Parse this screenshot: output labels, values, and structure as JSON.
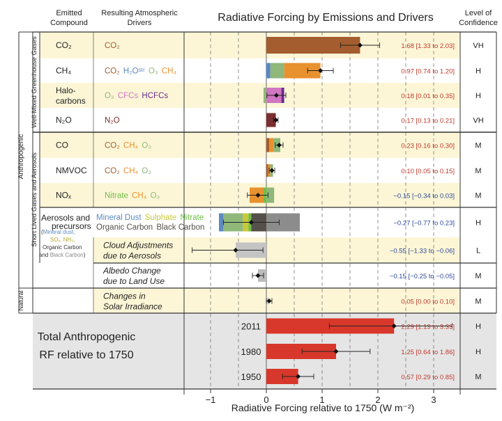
{
  "headers": {
    "compound": [
      "Emitted",
      "Compound"
    ],
    "drivers": [
      "Resulting Atmospheric",
      "Drivers"
    ],
    "title": "Radiative Forcing by Emissions and Drivers",
    "confidence": [
      "Level of",
      "Confidence"
    ]
  },
  "group_labels": {
    "anthropogenic": "Anthropogenic",
    "wmghg": "Well-Mixed Greenhouse Gases",
    "slcf": "Short Lived Gases and Aerosols",
    "natural": "Natural"
  },
  "colors": {
    "CO2": "#a35d2e",
    "CH4": "#e8912f",
    "H2Ostr": "#5a86c5",
    "O3": "#8fb87a",
    "CFCs": "#d176c1",
    "HCFCs": "#6b2b8f",
    "N2O": "#7b2e2e",
    "Nitrate": "#6fc046",
    "MineralDust": "#5d8bc0",
    "Sulphate": "#c9c83a",
    "OrganicCarbon": "#55514a",
    "BlackCarbon": "#8c8c8c",
    "Cloud": "#c4c4c4",
    "Albedo": "#bcbcbc",
    "Solar": "#d2d2d2",
    "Total": "#d7382b",
    "yellow_band": "#fcf6d6",
    "gray_band": "#e5e5e5",
    "value_red": "#c0392b",
    "value_blue": "#2c4a9a"
  },
  "rows": [
    {
      "compound": "CO₂",
      "drivers": [
        {
          "t": "CO₂",
          "c": "CO2"
        }
      ],
      "value_text": "1.68 [1.33 to 2.03]",
      "confidence": "VH",
      "band": "yellow"
    },
    {
      "compound": "CH₄",
      "drivers": [
        {
          "t": "CO₂",
          "c": "CO2"
        },
        {
          "t": "H₂Oˢᵗʳ",
          "c": "H2Ostr"
        },
        {
          "t": "O₃",
          "c": "O3"
        },
        {
          "t": "CH₄",
          "c": "CH4"
        }
      ],
      "value_text": "0.97 [0.74 to 1.20]",
      "confidence": "H",
      "band": "white"
    },
    {
      "compound": "Halo-",
      "compound2": "carbons",
      "drivers": [
        {
          "t": "O₃",
          "c": "O3"
        },
        {
          "t": "CFCs",
          "c": "CFCs"
        },
        {
          "t": "HCFCs",
          "c": "HCFCs"
        }
      ],
      "value_text": "0.18 [0.01 to 0.35]",
      "confidence": "H",
      "band": "yellow"
    },
    {
      "compound": "N₂O",
      "drivers": [
        {
          "t": "N₂O",
          "c": "N2O"
        }
      ],
      "value_text": "0.17 [0.13 to 0.21]",
      "confidence": "VH",
      "band": "white"
    },
    {
      "compound": "CO",
      "drivers": [
        {
          "t": "CO₂",
          "c": "CO2"
        },
        {
          "t": "CH₄",
          "c": "CH4"
        },
        {
          "t": "O₃",
          "c": "O3"
        }
      ],
      "value_text": "0.23 [0.16 to 0.30]",
      "confidence": "M",
      "band": "yellow"
    },
    {
      "compound": "NMVOC",
      "drivers": [
        {
          "t": "CO₂",
          "c": "CO2"
        },
        {
          "t": "CH₄",
          "c": "CH4"
        },
        {
          "t": "O₃",
          "c": "O3"
        }
      ],
      "value_text": "0.10 [0.05 to 0.15]",
      "confidence": "M",
      "band": "white"
    },
    {
      "compound": "NOₓ",
      "drivers": [
        {
          "t": "Nitrate",
          "c": "Nitrate"
        },
        {
          "t": "CH₄",
          "c": "CH4"
        },
        {
          "t": "O₃",
          "c": "O3"
        }
      ],
      "value_text": "−0.15 [−0.34 to 0.03]",
      "confidence": "M",
      "band": "yellow"
    },
    {
      "compound": "Aerosols and",
      "compound2": "precursors",
      "drivers": [
        {
          "t": "Mineral Dust",
          "c": "MineralDust"
        },
        {
          "t": "Sulphate",
          "c": "Sulphate"
        },
        {
          "t": "Nitrate",
          "c": "Nitrate"
        }
      ],
      "drivers2": [
        {
          "t": "Organic Carbon",
          "c": "OrganicCarbon"
        },
        {
          "t": "Black Carbon",
          "c": "OrganicCarbon"
        }
      ],
      "value_text": "−0.27 [−0.77 to 0.23]",
      "confidence": "H",
      "band": "white"
    },
    {
      "compound": "",
      "drivers": [
        {
          "t": "Cloud Adjustments",
          "c": "OrganicCarbon"
        }
      ],
      "drivers2": [
        {
          "t": "due to Aerosols",
          "c": "OrganicCarbon"
        }
      ],
      "italic": true,
      "value_text": "−0.55 [−1.33 to −0.06]",
      "confidence": "L",
      "band": "yellow"
    },
    {
      "compound": "",
      "drivers": [
        {
          "t": "Albedo Change",
          "c": "OrganicCarbon"
        }
      ],
      "drivers2": [
        {
          "t": "due to Land Use",
          "c": "OrganicCarbon"
        }
      ],
      "italic": true,
      "value_text": "−0.15 [−0.25 to −0.05]",
      "confidence": "M",
      "band": "white"
    },
    {
      "compound": "",
      "drivers": [
        {
          "t": "Changes in",
          "c": "OrganicCarbon"
        }
      ],
      "drivers2": [
        {
          "t": "Solar Irradiance",
          "c": "OrganicCarbon"
        }
      ],
      "italic": true,
      "value_text": "0.05 [0.00 to 0.10]",
      "confidence": "M",
      "band": "yellow"
    }
  ],
  "aerosol_precursors_note": {
    "open": "(",
    "mineral": "Mineral dust,",
    "so": "SOₓ, NH₃,",
    "oc": "Organic Carbon",
    "and": "and",
    "bc": "Black Carbon",
    "close": ")"
  },
  "total": {
    "label1": "Total Anthropogenic",
    "label2": "RF relative to 1750",
    "rows": [
      {
        "year": "2011",
        "value_text": "2.29 [1.13 to 3.33]",
        "confidence": "H"
      },
      {
        "year": "1980",
        "value_text": "1.25 [0.64 to 1.86]",
        "confidence": "H"
      },
      {
        "year": "1950",
        "value_text": "0.57 [0.29 to 0.85]",
        "confidence": "M"
      }
    ]
  },
  "xaxis": {
    "label": "Radiative Forcing relative to 1750 (W m⁻²)",
    "ticks": [
      "−1",
      "0",
      "1",
      "2",
      "3"
    ]
  },
  "chart_data": {
    "type": "bar",
    "title": "Radiative Forcing by Emissions and Drivers",
    "xlabel": "Radiative Forcing relative to 1750 (W m⁻²)",
    "xlim": [
      -1.35,
      3.55
    ],
    "x_ticks": [
      -1,
      0,
      1,
      2,
      3
    ],
    "dashed_gridlines_at": [
      -1,
      -0.5,
      0.5,
      1,
      1.5,
      2,
      2.5,
      3
    ],
    "categories": [
      "CO2",
      "CH4",
      "Halocarbons",
      "N2O",
      "CO",
      "NMVOC",
      "NOx",
      "Aerosols and precursors",
      "Cloud Adjustments due to Aerosols",
      "Albedo Change due to Land Use",
      "Changes in Solar Irradiance",
      "Total 2011",
      "Total 1980",
      "Total 1950"
    ],
    "best_estimate": [
      1.68,
      0.97,
      0.18,
      0.17,
      0.23,
      0.1,
      -0.15,
      -0.27,
      -0.55,
      -0.15,
      0.05,
      2.29,
      1.25,
      0.57
    ],
    "low": [
      1.33,
      0.74,
      0.01,
      0.13,
      0.16,
      0.05,
      -0.34,
      -0.77,
      -1.33,
      -0.25,
      0.0,
      1.13,
      0.64,
      0.29
    ],
    "high": [
      2.03,
      1.2,
      0.35,
      0.21,
      0.3,
      0.15,
      0.03,
      0.23,
      -0.06,
      -0.05,
      0.1,
      3.33,
      1.86,
      0.85
    ],
    "components": [
      [
        {
          "c": "CO2",
          "from": 0,
          "to": 1.68
        }
      ],
      [
        {
          "c": "H2Ostr",
          "from": 0,
          "to": 0.07
        },
        {
          "c": "O3",
          "from": 0.07,
          "to": 0.32
        },
        {
          "c": "CH4",
          "from": 0.32,
          "to": 0.97
        }
      ],
      [
        {
          "c": "O3",
          "from": -0.05,
          "to": 0
        },
        {
          "c": "CFCs",
          "from": 0,
          "to": 0.27
        },
        {
          "c": "HCFCs",
          "from": 0.27,
          "to": 0.32
        }
      ],
      [
        {
          "c": "N2O",
          "from": 0,
          "to": 0.17
        }
      ],
      [
        {
          "c": "CO2",
          "from": 0,
          "to": 0.05
        },
        {
          "c": "CH4",
          "from": 0.05,
          "to": 0.13
        },
        {
          "c": "O3",
          "from": 0.13,
          "to": 0.25
        }
      ],
      [
        {
          "c": "CO2",
          "from": 0,
          "to": 0.03
        },
        {
          "c": "CH4",
          "from": 0.03,
          "to": 0.07
        },
        {
          "c": "O3",
          "from": 0.07,
          "to": 0.12
        }
      ],
      [
        {
          "c": "CH4",
          "from": -0.3,
          "to": -0.05
        },
        {
          "c": "Nitrate",
          "from": -0.05,
          "to": 0
        },
        {
          "c": "O3",
          "from": 0,
          "to": 0.14
        }
      ],
      [
        {
          "c": "MineralDust",
          "from": -0.85,
          "to": -0.77
        },
        {
          "c": "O3",
          "from": -0.77,
          "to": -0.42
        },
        {
          "c": "Sulphate",
          "from": -0.42,
          "to": -0.32
        },
        {
          "c": "Nitrate",
          "from": -0.32,
          "to": -0.27
        },
        {
          "c": "OrganicCarbon",
          "from": -0.27,
          "to": 0
        },
        {
          "c": "BlackCarbon",
          "from": 0,
          "to": 0.6
        }
      ],
      [
        {
          "c": "Cloud",
          "from": -0.55,
          "to": 0
        }
      ],
      [
        {
          "c": "Albedo",
          "from": -0.15,
          "to": 0
        }
      ],
      [
        {
          "c": "Solar",
          "from": 0,
          "to": 0.05
        }
      ],
      [
        {
          "c": "Total",
          "from": 0,
          "to": 2.29
        }
      ],
      [
        {
          "c": "Total",
          "from": 0,
          "to": 1.25
        }
      ],
      [
        {
          "c": "Total",
          "from": 0,
          "to": 0.57
        }
      ]
    ]
  }
}
